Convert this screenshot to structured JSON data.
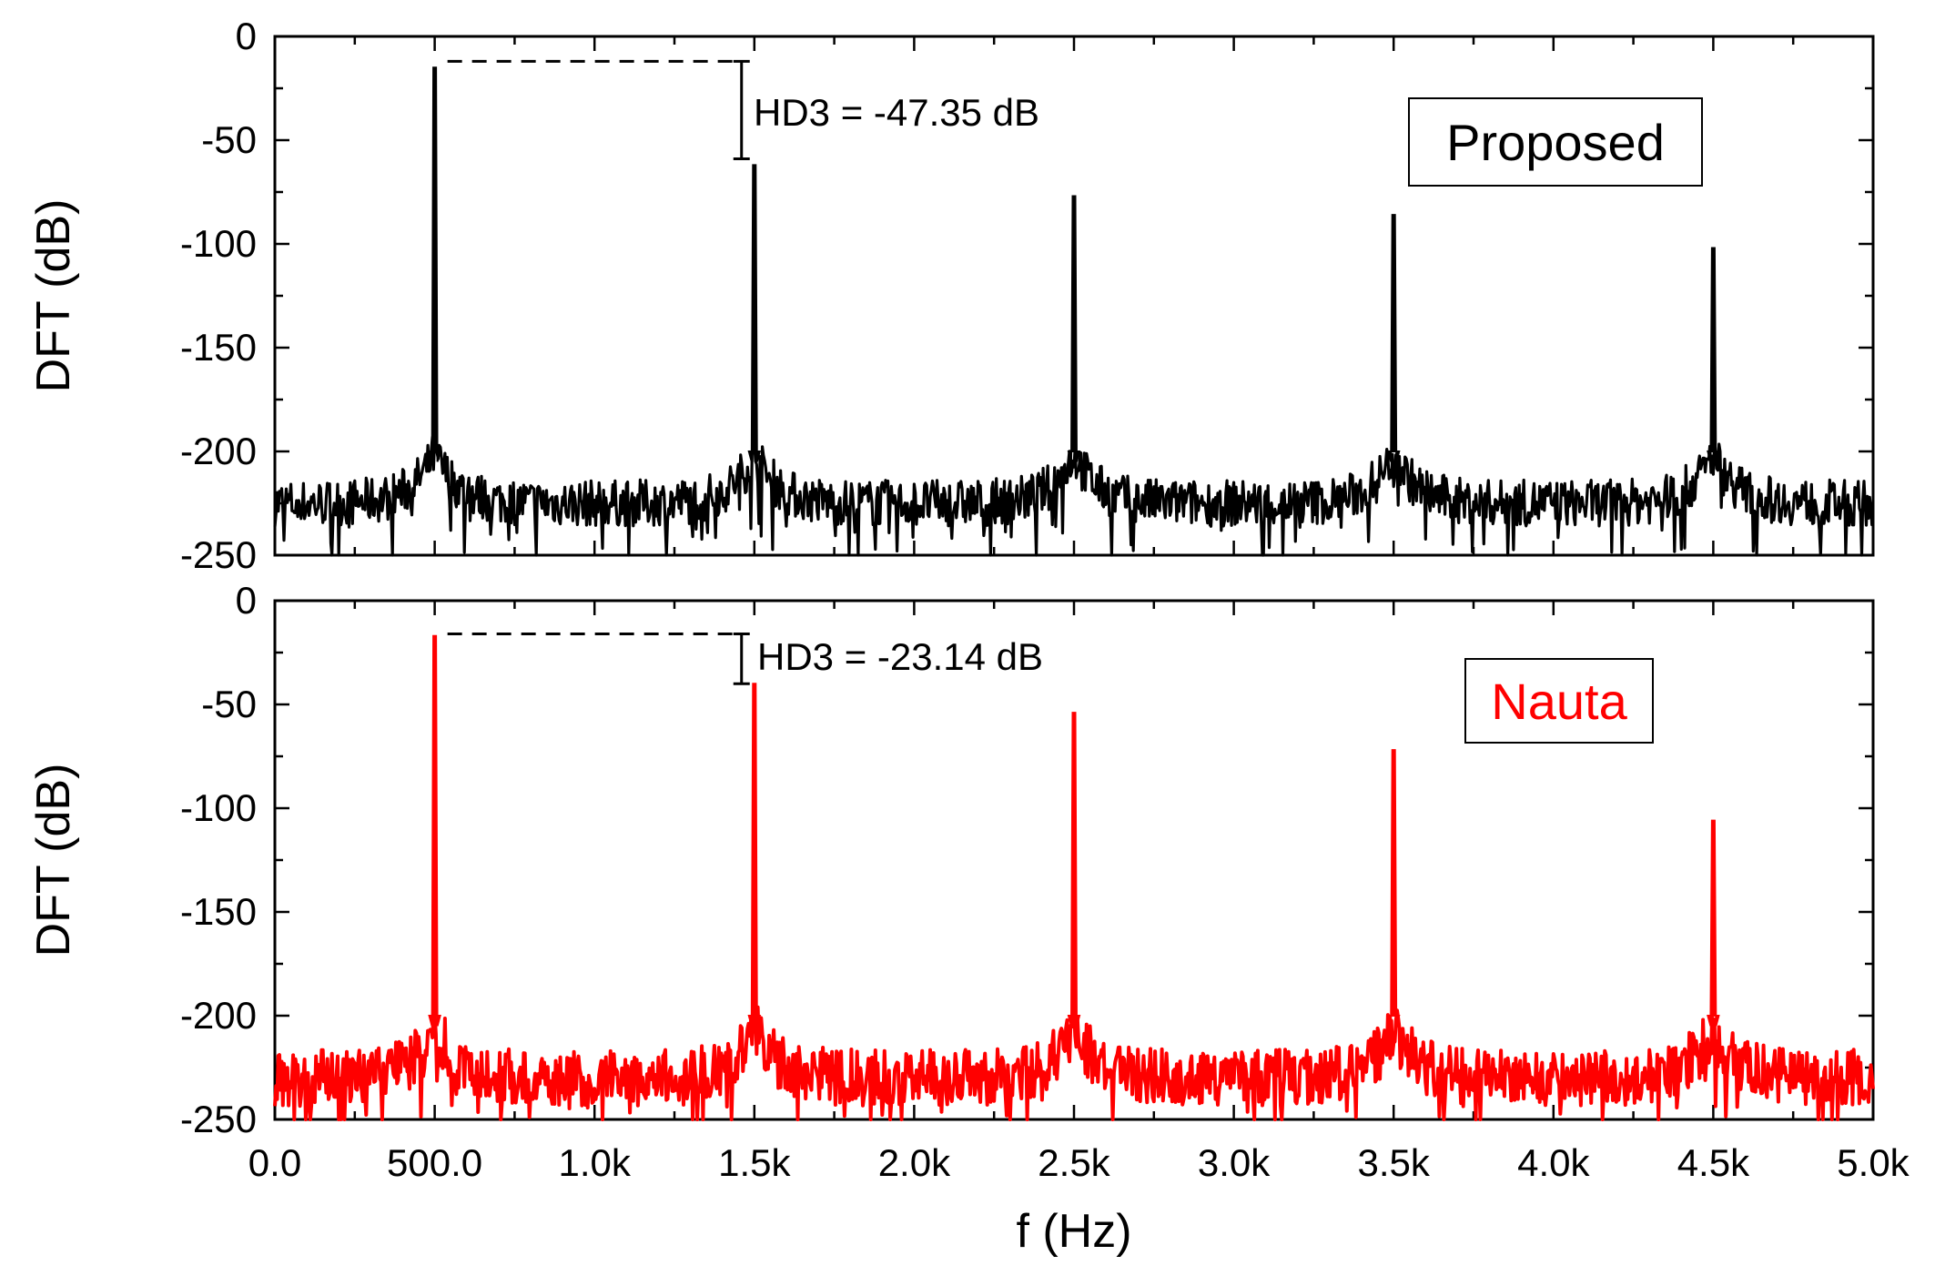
{
  "chart_data": [
    {
      "type": "line",
      "panel": "top",
      "series": [
        {
          "name": "Proposed",
          "color": "#000000",
          "noise_floor_db": -225,
          "peaks": [
            {
              "x": 500,
              "y": -15
            },
            {
              "x": 1500,
              "y": -62
            },
            {
              "x": 2500,
              "y": -77
            },
            {
              "x": 3500,
              "y": -86
            },
            {
              "x": 4500,
              "y": -102
            }
          ]
        }
      ],
      "legend": {
        "label": "Proposed",
        "color": "#000000",
        "placement": "top-right"
      },
      "annotation": {
        "text": "HD3 = -47.35 dB",
        "from_db": -12,
        "to_db": -59
      },
      "xlim": [
        0,
        5000
      ],
      "ylim": [
        -250,
        0
      ],
      "ylabel": "DFT (dB)",
      "yticks": [
        "0",
        "-50",
        "-100",
        "-150",
        "-200",
        "-250"
      ]
    },
    {
      "type": "line",
      "panel": "bottom",
      "series": [
        {
          "name": "Nauta",
          "color": "#ff0000",
          "noise_floor_db": -230,
          "peaks": [
            {
              "x": 500,
              "y": -17
            },
            {
              "x": 1500,
              "y": -40
            },
            {
              "x": 2500,
              "y": -54
            },
            {
              "x": 3500,
              "y": -72
            },
            {
              "x": 4500,
              "y": -106
            }
          ]
        }
      ],
      "legend": {
        "label": "Nauta",
        "color": "#ff0000",
        "placement": "top-right"
      },
      "annotation": {
        "text": "HD3 = -23.14 dB",
        "from_db": -16,
        "to_db": -40
      },
      "xlim": [
        0,
        5000
      ],
      "ylim": [
        -250,
        0
      ],
      "ylabel": "DFT (dB)",
      "yticks": [
        "0",
        "-50",
        "-100",
        "-150",
        "-200",
        "-250"
      ],
      "xlabel": "f (Hz)",
      "xticks": [
        "0.0",
        "500.0",
        "1.0k",
        "1.5k",
        "2.0k",
        "2.5k",
        "3.0k",
        "3.5k",
        "4.0k",
        "4.5k",
        "5.0k"
      ]
    }
  ]
}
